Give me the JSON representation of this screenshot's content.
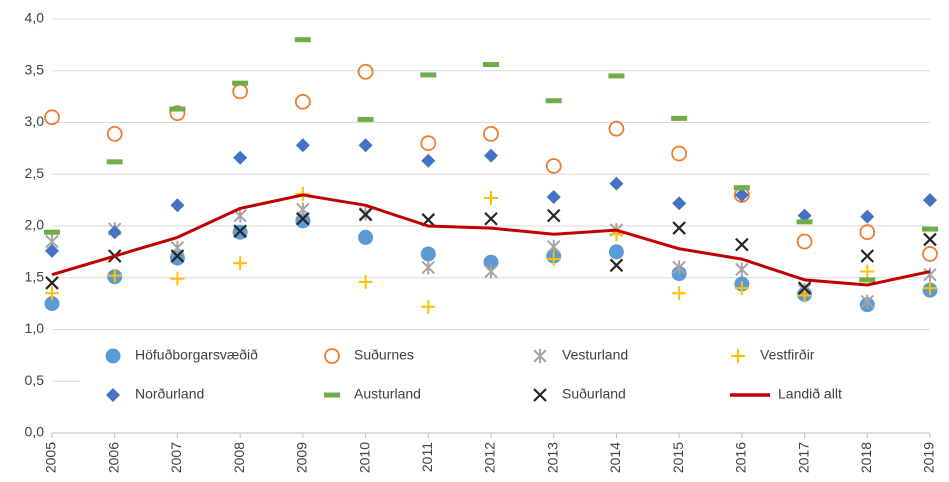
{
  "chart_data": {
    "type": "scatter",
    "categories": [
      "2005",
      "2006",
      "2007",
      "2008",
      "2009",
      "2010",
      "2011",
      "2012",
      "2013",
      "2014",
      "2015",
      "2016",
      "2017",
      "2018",
      "2019"
    ],
    "ylim": [
      0,
      4
    ],
    "yticks": [
      {
        "value": 0,
        "label": "0,0"
      },
      {
        "value": 0.5,
        "label": "0,5"
      },
      {
        "value": 1,
        "label": "1,0"
      },
      {
        "value": 1.5,
        "label": "1,5"
      },
      {
        "value": 2,
        "label": "2,0"
      },
      {
        "value": 2.5,
        "label": "2,5"
      },
      {
        "value": 3,
        "label": "3,0"
      },
      {
        "value": 3.5,
        "label": "3,5"
      },
      {
        "value": 4,
        "label": "4,0"
      }
    ],
    "grid": true,
    "series": [
      {
        "name": "Höfuðborgarsvæðið",
        "color": "#5b9bd5",
        "marker": "circle",
        "values": [
          1.25,
          1.51,
          1.69,
          1.94,
          2.05,
          1.89,
          1.73,
          1.65,
          1.71,
          1.75,
          1.54,
          1.44,
          1.34,
          1.24,
          1.38
        ]
      },
      {
        "name": "Suðurnes",
        "color": "#ed7d31",
        "marker": "open-circle",
        "values": [
          3.05,
          2.89,
          3.09,
          3.3,
          3.2,
          3.49,
          2.8,
          2.89,
          2.58,
          2.94,
          2.7,
          2.3,
          1.85,
          1.94,
          1.73
        ]
      },
      {
        "name": "Vesturland",
        "color": "#a5a5a5",
        "marker": "asterisk",
        "values": [
          1.85,
          1.97,
          1.79,
          2.1,
          2.16,
          2.12,
          1.6,
          1.56,
          1.8,
          1.96,
          1.6,
          1.58,
          1.38,
          1.27,
          1.53
        ]
      },
      {
        "name": "Vestfirðir",
        "color": "#ffc000",
        "marker": "plus",
        "values": [
          1.35,
          1.52,
          1.49,
          1.64,
          2.31,
          1.46,
          1.22,
          2.27,
          1.68,
          1.92,
          1.35,
          1.4,
          1.33,
          1.56,
          1.4
        ]
      },
      {
        "name": "Norðurland",
        "color": "#4472c4",
        "marker": "diamond",
        "values": [
          1.76,
          1.94,
          2.2,
          2.66,
          2.78,
          2.78,
          2.63,
          2.68,
          2.28,
          2.41,
          2.22,
          2.3,
          2.1,
          2.09,
          2.25
        ]
      },
      {
        "name": "Austurland",
        "color": "#70ad47",
        "marker": "dash",
        "values": [
          1.94,
          2.62,
          3.13,
          3.38,
          3.8,
          3.03,
          3.46,
          3.56,
          3.21,
          3.45,
          3.04,
          2.37,
          2.04,
          1.48,
          1.97
        ]
      },
      {
        "name": "Suðurland",
        "color": "#262626",
        "marker": "x",
        "values": [
          1.45,
          1.71,
          1.71,
          1.95,
          2.07,
          2.11,
          2.06,
          2.07,
          2.1,
          1.62,
          1.98,
          1.82,
          1.4,
          1.71,
          1.87
        ]
      },
      {
        "name": "Landið allt",
        "color": "#c00000",
        "marker": "line",
        "values": [
          1.53,
          1.71,
          1.89,
          2.17,
          2.3,
          2.2,
          2.0,
          1.98,
          1.92,
          1.96,
          1.78,
          1.68,
          1.48,
          1.43,
          1.56
        ]
      }
    ]
  }
}
